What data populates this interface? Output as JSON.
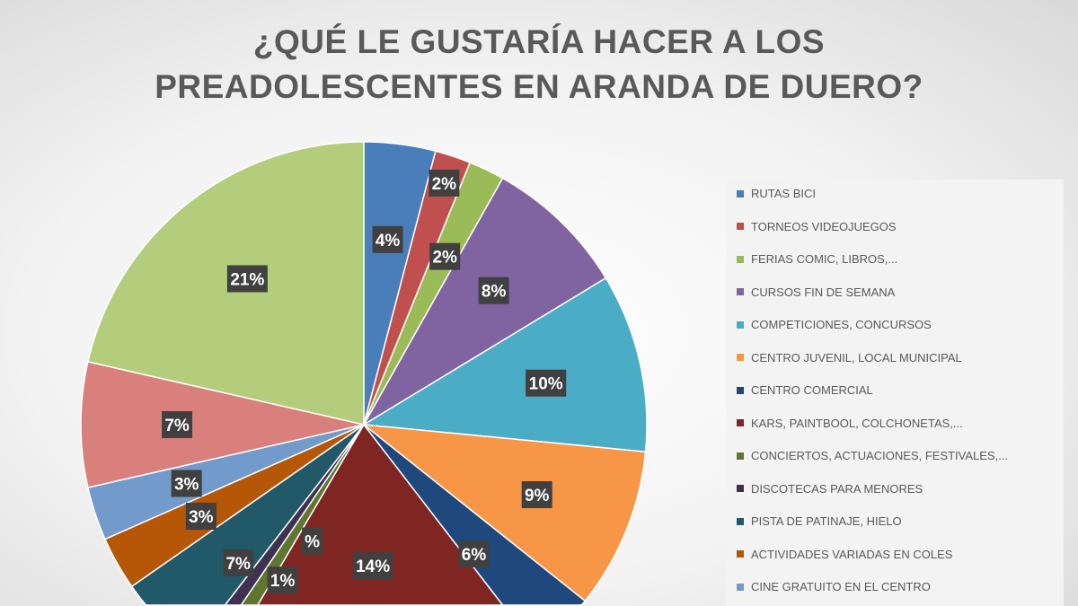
{
  "chart_data": {
    "type": "pie",
    "title": [
      "¿QUÉ LE GUSTARÍA HACER A LOS",
      "PREADOLESCENTES EN ARANDA DE DUERO?"
    ],
    "slices": [
      {
        "name": "RUTAS BICI",
        "value": 4,
        "label": "4%",
        "color": "#4a7ebb"
      },
      {
        "name": "TORNEOS VIDEOJUEGOS",
        "value": 2,
        "label": "2%",
        "color": "#c0504d"
      },
      {
        "name": "FERIAS COMIC, LIBROS,...",
        "value": 2,
        "label": "2%",
        "color": "#9bbb59"
      },
      {
        "name": "CURSOS FIN DE SEMANA",
        "value": 8,
        "label": "8%",
        "color": "#8064a2"
      },
      {
        "name": "COMPETICIONES, CONCURSOS",
        "value": 10,
        "label": "10%",
        "color": "#4bacc6"
      },
      {
        "name": "CENTRO JUVENIL, LOCAL MUNICIPAL",
        "value": 9,
        "label": "9%",
        "color": "#f79646"
      },
      {
        "name": "CENTRO COMERCIAL",
        "value": 6,
        "label": "6%",
        "color": "#1f497d"
      },
      {
        "name": "KARS, PAINTBOOL, COLCHONETAS,...",
        "value": 14,
        "label": "14%",
        "color": "#7f2623"
      },
      {
        "name": "CONCIERTOS, ACTUACIONES, FESTIVALES,...",
        "value": 1,
        "label": "%",
        "color": "#5f7530"
      },
      {
        "name": "DISCOTECAS PARA MENORES",
        "value": 1,
        "label": "1%",
        "color": "#3f3151"
      },
      {
        "name": "PISTA DE PATINAJE, HIELO",
        "value": 7,
        "label": "7%",
        "color": "#215968"
      },
      {
        "name": "ACTIVIDADES VARIADAS EN COLES",
        "value": 3,
        "label": "3%",
        "color": "#b65708"
      },
      {
        "name": "CINE GRATUITO EN EL CENTRO",
        "value": 3,
        "label": "3%",
        "color": "#729aca"
      },
      {
        "name": "",
        "value": 7,
        "label": "7%",
        "color": "#d9807d"
      },
      {
        "name": "",
        "value": 21,
        "label": "21%",
        "color": "#b3cd7c"
      }
    ],
    "legend": "right"
  }
}
